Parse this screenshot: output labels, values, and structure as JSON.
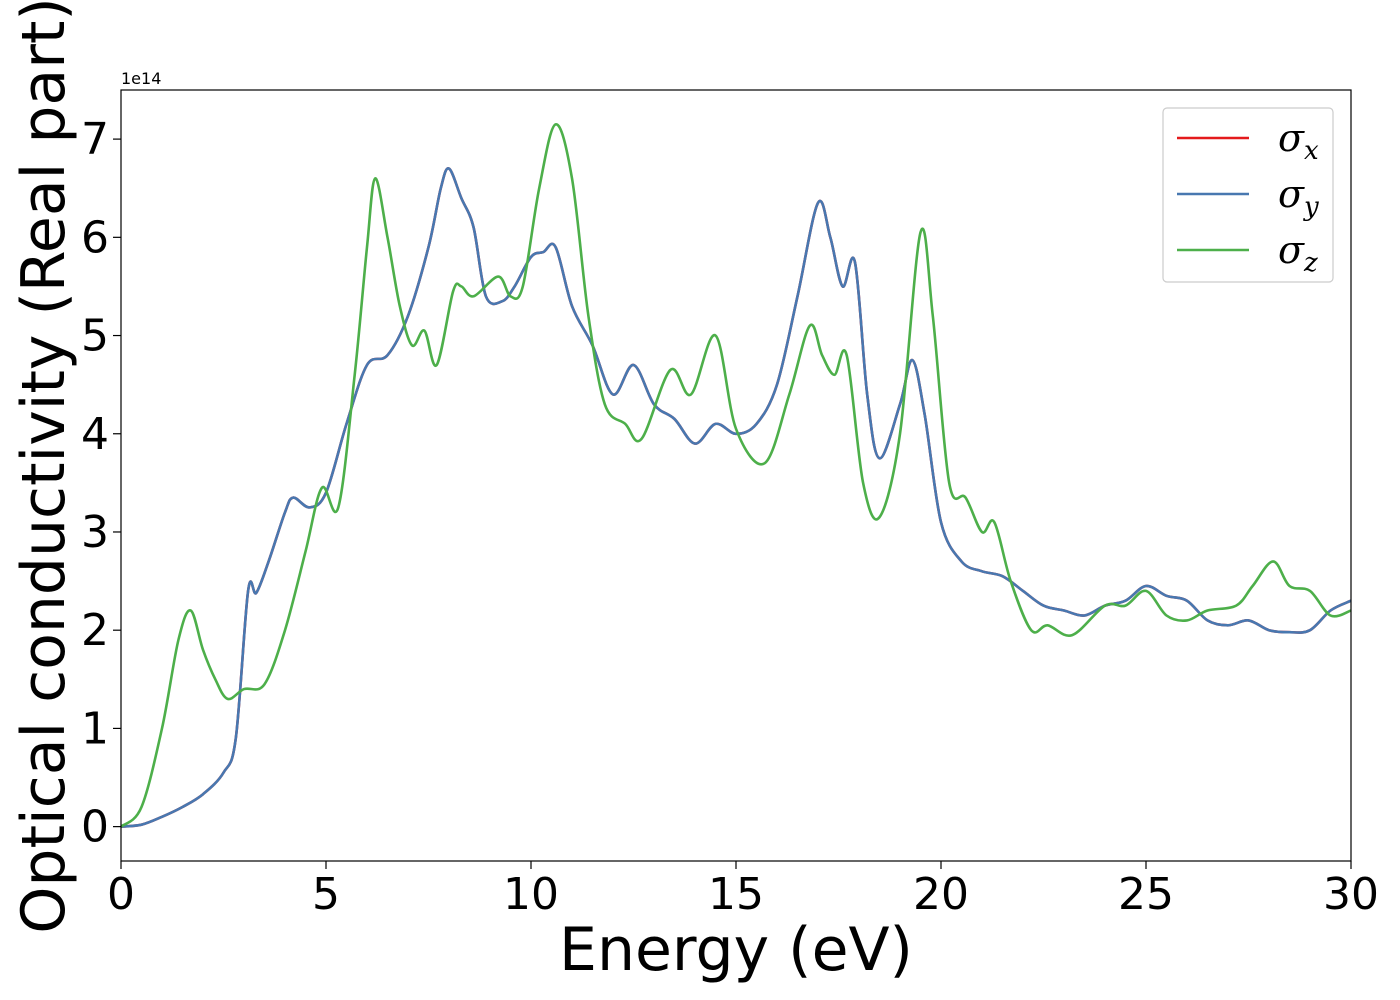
{
  "chart_data": {
    "type": "line",
    "xlabel": "Energy (eV)",
    "ylabel": "Optical conductivity (Real part)",
    "y_offset_label": "1e14",
    "xlim": [
      0,
      30
    ],
    "ylim": [
      -0.35,
      7.5
    ],
    "xticks": [
      0,
      5,
      10,
      15,
      20,
      25,
      30
    ],
    "yticks": [
      0,
      1,
      2,
      3,
      4,
      5,
      6,
      7
    ],
    "grid": false,
    "legend_position": "top-right",
    "series": [
      {
        "name": "σ_x",
        "label_main": "σ",
        "label_sub": "x",
        "color": "#e41a1c",
        "points": [
          [
            0,
            0
          ],
          [
            0.5,
            0.02
          ],
          [
            1,
            0.1
          ],
          [
            1.5,
            0.2
          ],
          [
            2,
            0.33
          ],
          [
            2.5,
            0.55
          ],
          [
            2.8,
            0.9
          ],
          [
            3.1,
            2.4
          ],
          [
            3.3,
            2.38
          ],
          [
            3.6,
            2.7
          ],
          [
            4,
            3.2
          ],
          [
            4.2,
            3.35
          ],
          [
            4.6,
            3.25
          ],
          [
            5,
            3.4
          ],
          [
            5.5,
            4.1
          ],
          [
            6,
            4.7
          ],
          [
            6.5,
            4.8
          ],
          [
            7,
            5.2
          ],
          [
            7.5,
            5.9
          ],
          [
            7.8,
            6.5
          ],
          [
            8,
            6.7
          ],
          [
            8.3,
            6.4
          ],
          [
            8.6,
            6.1
          ],
          [
            8.9,
            5.4
          ],
          [
            9.3,
            5.35
          ],
          [
            9.6,
            5.5
          ],
          [
            10,
            5.8
          ],
          [
            10.3,
            5.85
          ],
          [
            10.6,
            5.9
          ],
          [
            11,
            5.3
          ],
          [
            11.5,
            4.9
          ],
          [
            12,
            4.4
          ],
          [
            12.5,
            4.7
          ],
          [
            13,
            4.3
          ],
          [
            13.5,
            4.15
          ],
          [
            14,
            3.9
          ],
          [
            14.5,
            4.1
          ],
          [
            15,
            4.0
          ],
          [
            15.5,
            4.1
          ],
          [
            16,
            4.5
          ],
          [
            16.5,
            5.4
          ],
          [
            17,
            6.35
          ],
          [
            17.3,
            6.0
          ],
          [
            17.6,
            5.5
          ],
          [
            17.9,
            5.75
          ],
          [
            18.2,
            4.4
          ],
          [
            18.5,
            3.75
          ],
          [
            19,
            4.3
          ],
          [
            19.3,
            4.75
          ],
          [
            19.6,
            4.2
          ],
          [
            20,
            3.1
          ],
          [
            20.5,
            2.7
          ],
          [
            21,
            2.6
          ],
          [
            21.5,
            2.55
          ],
          [
            22,
            2.4
          ],
          [
            22.5,
            2.25
          ],
          [
            23,
            2.2
          ],
          [
            23.5,
            2.15
          ],
          [
            24,
            2.25
          ],
          [
            24.5,
            2.3
          ],
          [
            25,
            2.45
          ],
          [
            25.5,
            2.35
          ],
          [
            26,
            2.3
          ],
          [
            26.5,
            2.1
          ],
          [
            27,
            2.05
          ],
          [
            27.5,
            2.1
          ],
          [
            28,
            2.0
          ],
          [
            28.5,
            1.98
          ],
          [
            29,
            2.0
          ],
          [
            29.5,
            2.2
          ],
          [
            30,
            2.3
          ]
        ]
      },
      {
        "name": "σ_y",
        "label_main": "σ",
        "label_sub": "y",
        "color": "#4878b0",
        "points": [
          [
            0,
            0
          ],
          [
            0.5,
            0.02
          ],
          [
            1,
            0.1
          ],
          [
            1.5,
            0.2
          ],
          [
            2,
            0.33
          ],
          [
            2.5,
            0.55
          ],
          [
            2.8,
            0.9
          ],
          [
            3.1,
            2.4
          ],
          [
            3.3,
            2.38
          ],
          [
            3.6,
            2.7
          ],
          [
            4,
            3.2
          ],
          [
            4.2,
            3.35
          ],
          [
            4.6,
            3.25
          ],
          [
            5,
            3.4
          ],
          [
            5.5,
            4.1
          ],
          [
            6,
            4.7
          ],
          [
            6.5,
            4.8
          ],
          [
            7,
            5.2
          ],
          [
            7.5,
            5.9
          ],
          [
            7.8,
            6.5
          ],
          [
            8,
            6.7
          ],
          [
            8.3,
            6.4
          ],
          [
            8.6,
            6.1
          ],
          [
            8.9,
            5.4
          ],
          [
            9.3,
            5.35
          ],
          [
            9.6,
            5.5
          ],
          [
            10,
            5.8
          ],
          [
            10.3,
            5.85
          ],
          [
            10.6,
            5.9
          ],
          [
            11,
            5.3
          ],
          [
            11.5,
            4.9
          ],
          [
            12,
            4.4
          ],
          [
            12.5,
            4.7
          ],
          [
            13,
            4.3
          ],
          [
            13.5,
            4.15
          ],
          [
            14,
            3.9
          ],
          [
            14.5,
            4.1
          ],
          [
            15,
            4.0
          ],
          [
            15.5,
            4.1
          ],
          [
            16,
            4.5
          ],
          [
            16.5,
            5.4
          ],
          [
            17,
            6.35
          ],
          [
            17.3,
            6.0
          ],
          [
            17.6,
            5.5
          ],
          [
            17.9,
            5.75
          ],
          [
            18.2,
            4.4
          ],
          [
            18.5,
            3.75
          ],
          [
            19,
            4.3
          ],
          [
            19.3,
            4.75
          ],
          [
            19.6,
            4.2
          ],
          [
            20,
            3.1
          ],
          [
            20.5,
            2.7
          ],
          [
            21,
            2.6
          ],
          [
            21.5,
            2.55
          ],
          [
            22,
            2.4
          ],
          [
            22.5,
            2.25
          ],
          [
            23,
            2.2
          ],
          [
            23.5,
            2.15
          ],
          [
            24,
            2.25
          ],
          [
            24.5,
            2.3
          ],
          [
            25,
            2.45
          ],
          [
            25.5,
            2.35
          ],
          [
            26,
            2.3
          ],
          [
            26.5,
            2.1
          ],
          [
            27,
            2.05
          ],
          [
            27.5,
            2.1
          ],
          [
            28,
            2.0
          ],
          [
            28.5,
            1.98
          ],
          [
            29,
            2.0
          ],
          [
            29.5,
            2.2
          ],
          [
            30,
            2.3
          ]
        ]
      },
      {
        "name": "σ_z",
        "label_main": "σ",
        "label_sub": "z",
        "color": "#4daf4a",
        "points": [
          [
            0,
            0
          ],
          [
            0.5,
            0.2
          ],
          [
            1,
            1.0
          ],
          [
            1.4,
            1.9
          ],
          [
            1.7,
            2.2
          ],
          [
            2,
            1.8
          ],
          [
            2.3,
            1.5
          ],
          [
            2.6,
            1.3
          ],
          [
            3,
            1.4
          ],
          [
            3.5,
            1.45
          ],
          [
            4,
            2.0
          ],
          [
            4.5,
            2.8
          ],
          [
            4.9,
            3.45
          ],
          [
            5.3,
            3.25
          ],
          [
            5.7,
            4.6
          ],
          [
            6,
            5.9
          ],
          [
            6.2,
            6.6
          ],
          [
            6.5,
            6.0
          ],
          [
            6.8,
            5.3
          ],
          [
            7.1,
            4.9
          ],
          [
            7.4,
            5.05
          ],
          [
            7.7,
            4.7
          ],
          [
            8.1,
            5.45
          ],
          [
            8.3,
            5.5
          ],
          [
            8.6,
            5.4
          ],
          [
            9.2,
            5.6
          ],
          [
            9.5,
            5.4
          ],
          [
            9.8,
            5.5
          ],
          [
            10.2,
            6.5
          ],
          [
            10.6,
            7.15
          ],
          [
            11,
            6.6
          ],
          [
            11.4,
            5.2
          ],
          [
            11.8,
            4.3
          ],
          [
            12.3,
            4.1
          ],
          [
            12.7,
            3.95
          ],
          [
            13.4,
            4.65
          ],
          [
            13.9,
            4.4
          ],
          [
            14.5,
            5.0
          ],
          [
            15,
            4.05
          ],
          [
            15.7,
            3.7
          ],
          [
            16.3,
            4.4
          ],
          [
            16.8,
            5.1
          ],
          [
            17.1,
            4.8
          ],
          [
            17.4,
            4.6
          ],
          [
            17.7,
            4.8
          ],
          [
            18.1,
            3.5
          ],
          [
            18.5,
            3.15
          ],
          [
            19,
            4.0
          ],
          [
            19.5,
            6.05
          ],
          [
            19.8,
            5.2
          ],
          [
            20.2,
            3.5
          ],
          [
            20.6,
            3.35
          ],
          [
            21,
            3.0
          ],
          [
            21.3,
            3.1
          ],
          [
            21.7,
            2.5
          ],
          [
            22.2,
            2.0
          ],
          [
            22.6,
            2.05
          ],
          [
            23.2,
            1.95
          ],
          [
            24,
            2.25
          ],
          [
            24.5,
            2.25
          ],
          [
            25,
            2.4
          ],
          [
            25.5,
            2.15
          ],
          [
            26,
            2.1
          ],
          [
            26.5,
            2.2
          ],
          [
            27.2,
            2.25
          ],
          [
            27.6,
            2.45
          ],
          [
            28.1,
            2.7
          ],
          [
            28.5,
            2.45
          ],
          [
            29,
            2.4
          ],
          [
            29.5,
            2.15
          ],
          [
            30,
            2.2
          ]
        ]
      }
    ]
  }
}
